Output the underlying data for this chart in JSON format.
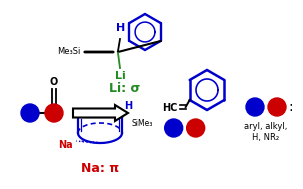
{
  "bg_color": "#ffffff",
  "border_color": "#aaaaaa",
  "blue": "#0000cc",
  "red": "#cc0000",
  "green": "#228B22",
  "black": "#000000",
  "gray": "#555555",
  "li_sigma": "Li: σ",
  "na_pi": "Na: π",
  "legend_line1": "aryl, alkyl,",
  "legend_line2": "H, NR₂",
  "hc_text": "HC",
  "me3si_text": "Me₃Si",
  "sime3_text": "SiMe₃",
  "h_text": "H",
  "na_text": "Na",
  "li_text": "Li",
  "o_text": "O"
}
